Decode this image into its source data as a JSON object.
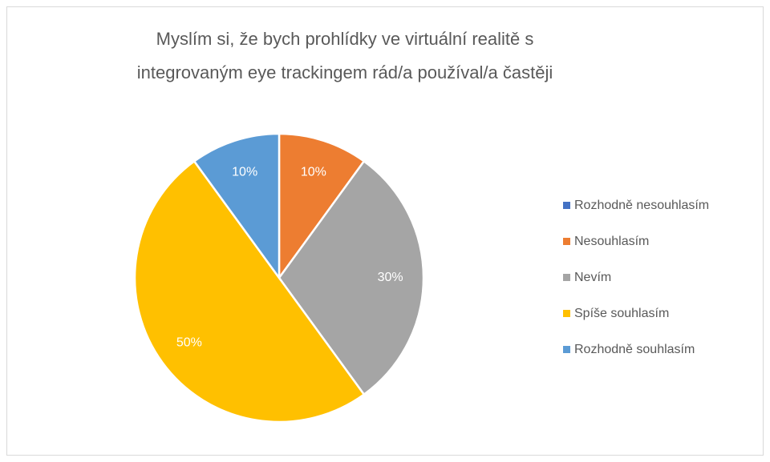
{
  "chart_data": {
    "type": "pie",
    "title": "Myslím si, že bych prohlídky ve virtuální realitě s integrovaným eye trackingem rád/a používal/a častěji",
    "categories": [
      "Rozhodně nesouhlasím",
      "Nesouhlasím",
      "Nevím",
      "Spíše souhlasím",
      "Rozhodně souhlasím"
    ],
    "values": [
      0,
      10,
      30,
      50,
      10
    ],
    "value_labels": [
      null,
      "10%",
      "30%",
      "50%",
      "10%"
    ],
    "colors": [
      "#4472c4",
      "#ed7d31",
      "#a5a5a5",
      "#ffc000",
      "#5b9bd5"
    ],
    "legend": "right"
  }
}
